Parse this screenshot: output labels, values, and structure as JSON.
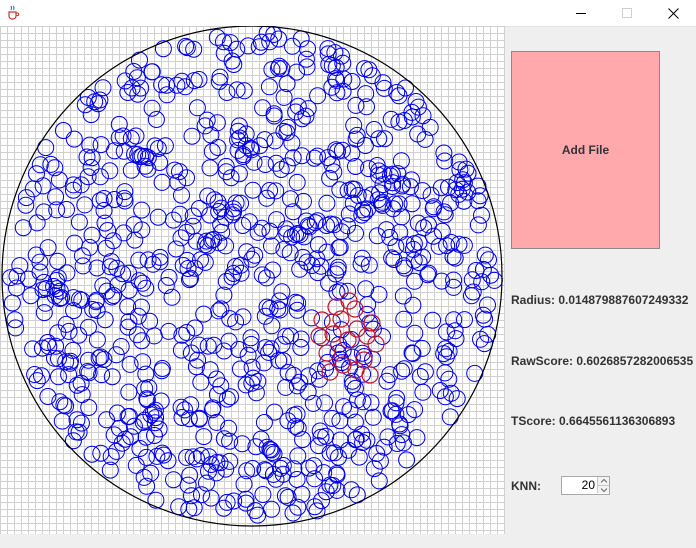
{
  "window": {
    "icon": "java-cup-icon",
    "minimize_icon": "minimize-icon",
    "maximize_icon": "maximize-icon",
    "close_icon": "close-icon"
  },
  "canvas": {
    "colors": {
      "normal": "#0000e6",
      "neighbor": "#c0142e",
      "boundary": "#000000",
      "grid": "#d0d0d0"
    }
  },
  "sidebar": {
    "add_file_label": "Add File",
    "radius_label": "Radius: 0.014879887607249332",
    "raw_score_label": "RawScore: 0.6026857282006535",
    "tscore_label": "TScore: 0.6645561136306893",
    "knn_label": "KNN:",
    "knn_value": "20",
    "add_file_color": "#ffa9ad"
  }
}
